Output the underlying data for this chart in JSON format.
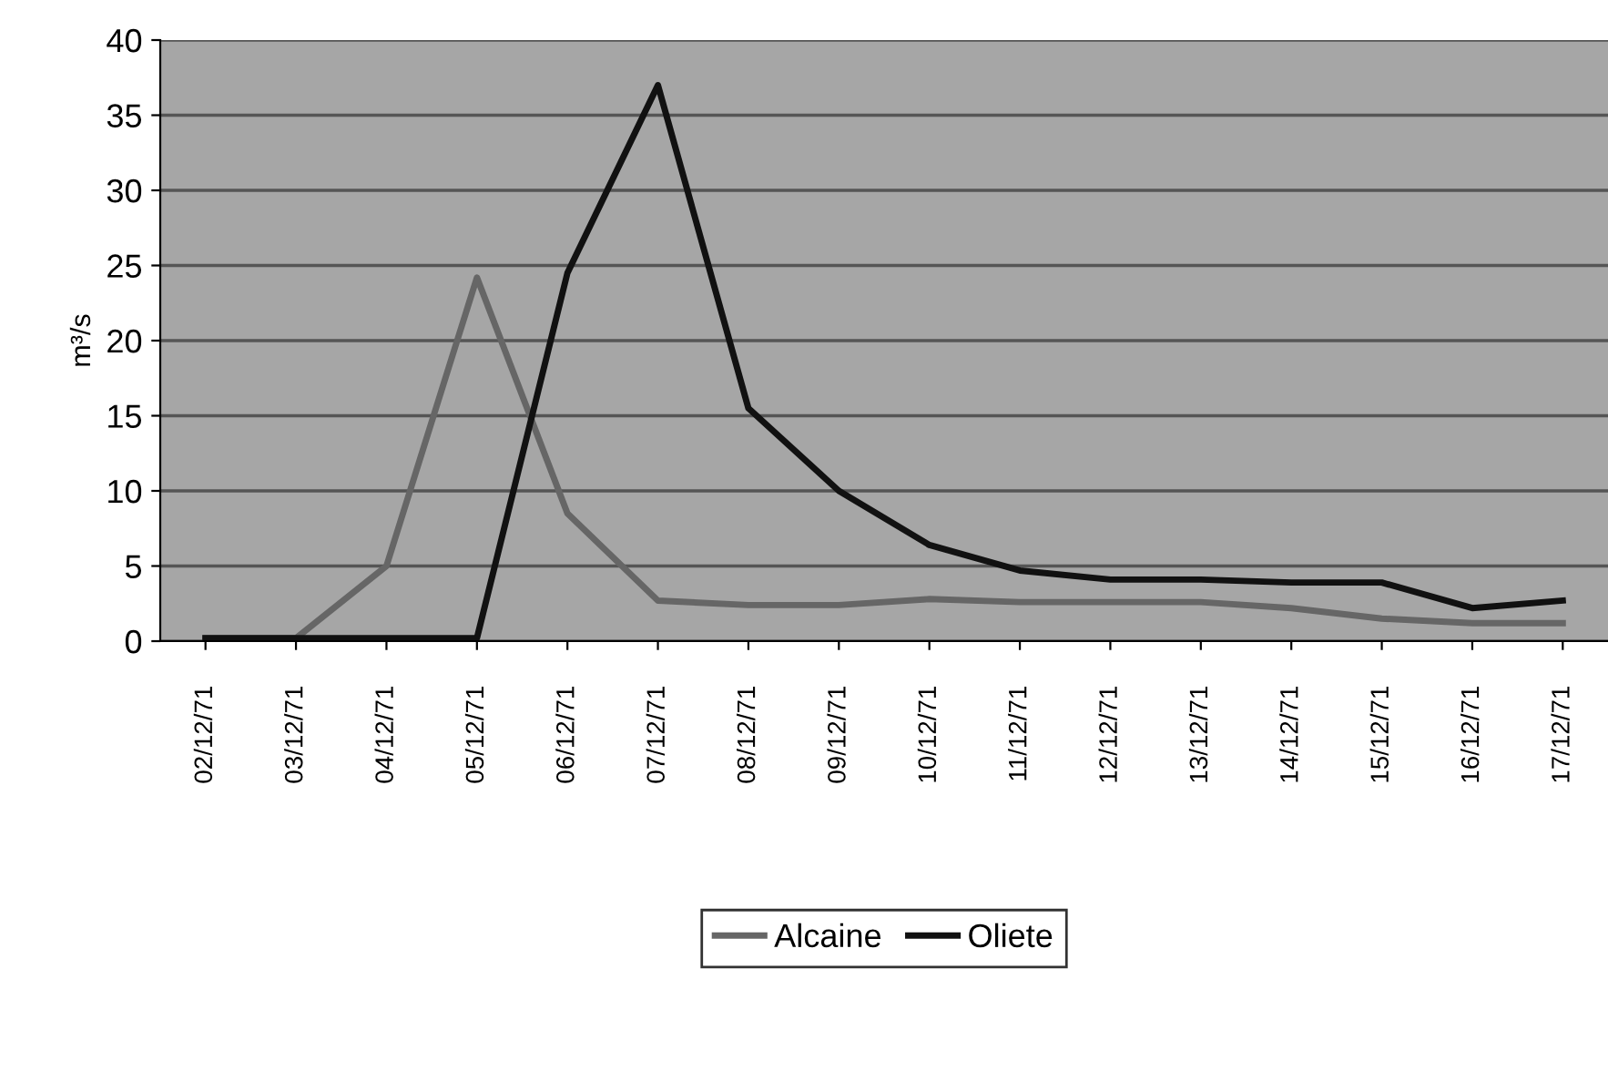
{
  "chart_data": {
    "type": "line",
    "ylabel": "m³/s",
    "categories": [
      "02/12/71",
      "03/12/71",
      "04/12/71",
      "05/12/71",
      "06/12/71",
      "07/12/71",
      "08/12/71",
      "09/12/71",
      "10/12/71",
      "11/12/71",
      "12/12/71",
      "13/12/71",
      "14/12/71",
      "15/12/71",
      "16/12/71",
      "17/12/71"
    ],
    "series": [
      {
        "name": "Alcaine",
        "color": "#666666",
        "values": [
          0.2,
          0.2,
          5,
          24.2,
          8.5,
          2.7,
          2.4,
          2.4,
          2.8,
          2.6,
          2.6,
          2.6,
          2.2,
          1.5,
          1.2,
          1.2
        ]
      },
      {
        "name": "Oliete",
        "color": "#111111",
        "values": [
          0.2,
          0.2,
          0.2,
          0.2,
          24.5,
          37,
          15.5,
          10,
          6.4,
          4.7,
          4.1,
          4.1,
          3.9,
          3.9,
          2.2,
          2.7
        ]
      }
    ],
    "ylim": [
      0,
      40
    ],
    "yticks": [
      0,
      5,
      10,
      15,
      20,
      25,
      30,
      35,
      40
    ],
    "grid": "y",
    "legend": "bottom",
    "marker": "none",
    "line_style": "solid"
  }
}
